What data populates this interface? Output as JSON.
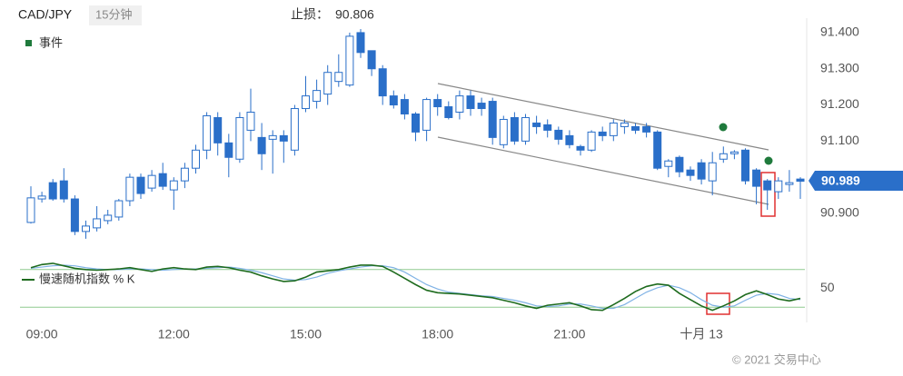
{
  "header": {
    "symbol": "CAD/JPY",
    "interval": "15分钟",
    "stop_loss_label": "止损：",
    "stop_loss": 90.806,
    "copyright": "© 2021 交易中心"
  },
  "chart_data": [
    {
      "type": "candlestick",
      "legend": "事件",
      "up_color": "#ffffff",
      "down_color": "#2a6fc9",
      "edge_color": "#2a6fc9",
      "categories": [
        null,
        "09:00",
        null,
        null,
        null,
        null,
        null,
        null,
        null,
        null,
        null,
        null,
        null,
        "12:00",
        null,
        null,
        null,
        null,
        null,
        null,
        null,
        null,
        null,
        null,
        null,
        "15:00",
        null,
        null,
        null,
        null,
        null,
        null,
        null,
        null,
        null,
        null,
        null,
        "18:00",
        null,
        null,
        null,
        null,
        null,
        null,
        null,
        null,
        null,
        null,
        null,
        "21:00",
        null,
        null,
        null,
        null,
        null,
        null,
        null,
        null,
        null,
        null,
        null,
        "十月 13",
        null,
        null,
        null,
        null,
        null,
        null,
        null,
        null,
        null
      ],
      "open": [
        90.875,
        90.94,
        90.985,
        90.99,
        90.94,
        90.85,
        90.86,
        90.88,
        90.89,
        90.935,
        91.0,
        90.97,
        91.01,
        90.965,
        90.99,
        91.025,
        91.075,
        91.165,
        91.095,
        91.05,
        91.13,
        91.11,
        91.105,
        91.115,
        91.075,
        91.19,
        91.21,
        91.23,
        91.265,
        91.255,
        91.4,
        91.35,
        91.3,
        91.225,
        91.215,
        91.175,
        91.13,
        91.215,
        91.195,
        91.18,
        91.225,
        91.205,
        91.21,
        91.09,
        91.165,
        91.1,
        91.15,
        91.145,
        91.13,
        91.115,
        91.085,
        91.075,
        91.125,
        91.115,
        91.14,
        91.14,
        91.14,
        91.125,
        91.03,
        91.055,
        91.02,
        91.04,
        90.99,
        91.05,
        91.065,
        91.075,
        91.02,
        90.99,
        90.96,
        90.98,
        90.995
      ],
      "high": [
        90.975,
        90.96,
        90.995,
        91.025,
        90.95,
        90.88,
        90.92,
        90.91,
        90.94,
        91.01,
        91.01,
        91.02,
        91.04,
        91.0,
        91.04,
        91.09,
        91.18,
        91.18,
        91.12,
        91.18,
        91.245,
        91.15,
        91.13,
        91.13,
        91.2,
        91.28,
        91.27,
        91.31,
        91.34,
        91.4,
        91.41,
        91.35,
        91.31,
        91.24,
        91.23,
        91.18,
        91.22,
        91.23,
        91.21,
        91.24,
        91.24,
        91.22,
        91.22,
        91.17,
        91.18,
        91.175,
        91.17,
        91.16,
        91.14,
        91.13,
        91.09,
        91.13,
        91.14,
        91.16,
        91.16,
        91.15,
        91.15,
        91.13,
        91.05,
        91.06,
        91.03,
        91.05,
        91.07,
        91.085,
        91.075,
        91.08,
        91.025,
        90.995,
        91.0,
        91.02,
        91.0
      ],
      "low": [
        90.872,
        90.93,
        90.935,
        90.93,
        90.84,
        90.83,
        90.85,
        90.87,
        90.88,
        90.92,
        90.94,
        90.96,
        90.965,
        90.91,
        90.97,
        91.01,
        91.05,
        91.06,
        91.0,
        91.04,
        91.1,
        91.02,
        91.01,
        91.04,
        91.06,
        91.18,
        91.19,
        91.2,
        91.25,
        91.25,
        91.33,
        91.28,
        91.2,
        91.19,
        91.16,
        91.1,
        91.1,
        91.17,
        91.16,
        91.16,
        91.17,
        91.17,
        91.09,
        91.08,
        91.09,
        91.09,
        91.12,
        91.11,
        91.09,
        91.08,
        91.06,
        91.07,
        91.1,
        91.1,
        91.12,
        91.12,
        91.11,
        91.02,
        91.0,
        91.0,
        90.99,
        90.98,
        90.95,
        91.04,
        91.05,
        90.98,
        90.925,
        90.91,
        90.94,
        90.96,
        90.94
      ],
      "close": [
        90.943,
        90.948,
        90.94,
        90.94,
        90.85,
        90.865,
        90.885,
        90.895,
        90.935,
        91.0,
        90.955,
        91.005,
        90.975,
        90.99,
        91.025,
        91.075,
        91.17,
        91.095,
        91.055,
        91.165,
        91.18,
        91.065,
        91.115,
        91.1,
        91.19,
        91.225,
        91.24,
        91.29,
        91.29,
        91.39,
        91.345,
        91.3,
        91.225,
        91.2,
        91.175,
        91.125,
        91.215,
        91.195,
        91.165,
        91.225,
        91.19,
        91.19,
        91.11,
        91.16,
        91.1,
        91.165,
        91.14,
        91.13,
        91.105,
        91.09,
        91.075,
        91.125,
        91.115,
        91.15,
        91.15,
        91.13,
        91.125,
        91.025,
        91.045,
        91.015,
        91.005,
        90.995,
        91.04,
        91.065,
        91.07,
        90.99,
        90.975,
        90.965,
        90.99,
        90.985,
        90.989
      ],
      "ylim": [
        90.812,
        91.44
      ],
      "yticks": [
        {
          "value": 91.4,
          "label": "91.400"
        },
        {
          "value": 91.3,
          "label": "91.300"
        },
        {
          "value": 91.2,
          "label": "91.200"
        },
        {
          "value": 91.1,
          "label": "91.100"
        },
        {
          "value": 90.9,
          "label": "90.900"
        }
      ]
    },
    {
      "type": "line",
      "ylim": [
        0,
        100
      ],
      "yticks": [
        50
      ],
      "levels": [
        20,
        80
      ],
      "level_color": "#8fca8f",
      "series": [
        {
          "name": "慢速随机指数 % K",
          "color": "#1e6b1e",
          "values": [
            83,
            88,
            90,
            86,
            82,
            80,
            79,
            80,
            81,
            83,
            80,
            77,
            81,
            83,
            81,
            80,
            84,
            85,
            83,
            79,
            76,
            70,
            65,
            61,
            62,
            68,
            76,
            78,
            80,
            84,
            87,
            87,
            85,
            76,
            66,
            56,
            47,
            43,
            42,
            41,
            39,
            37,
            35,
            31,
            27,
            22,
            18,
            23,
            25,
            27,
            22,
            16,
            15,
            24,
            34,
            45,
            53,
            57,
            55,
            42,
            32,
            22,
            15,
            22,
            30,
            40,
            46,
            40,
            33,
            30,
            34
          ]
        },
        {
          "color": "#7fb2e5",
          "values": [
            82,
            84,
            86,
            87,
            86,
            83,
            81,
            80,
            80,
            81,
            81,
            80,
            79,
            80,
            81,
            81,
            82,
            83,
            84,
            82,
            79,
            75,
            70,
            65,
            63,
            64,
            68,
            74,
            78,
            81,
            84,
            86,
            86,
            83,
            76,
            66,
            56,
            49,
            44,
            42,
            40,
            38,
            37,
            34,
            31,
            27,
            22,
            21,
            22,
            25,
            25,
            22,
            18,
            18,
            24,
            34,
            44,
            51,
            55,
            51,
            43,
            32,
            23,
            20,
            22,
            31,
            39,
            42,
            40,
            34,
            32
          ]
        }
      ]
    }
  ]
}
